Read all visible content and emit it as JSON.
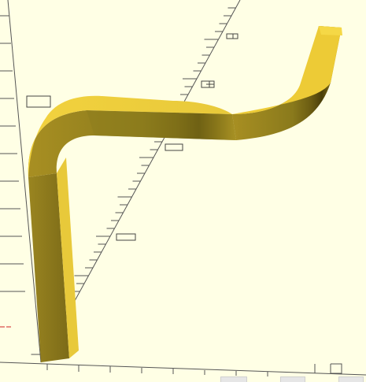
{
  "viewport": {
    "background_color": "#ffffe5",
    "axis_color": "#555555",
    "object_color": "#e6c63a",
    "object_shadow_color": "#8a7a1c",
    "axis_red": "#d22222"
  },
  "axes": {
    "labels": [
      "",
      "",
      "",
      ""
    ]
  },
  "object": {
    "name": "bent-rod-model"
  },
  "bottom_strip": {
    "tabs": [
      "",
      "",
      ""
    ]
  }
}
